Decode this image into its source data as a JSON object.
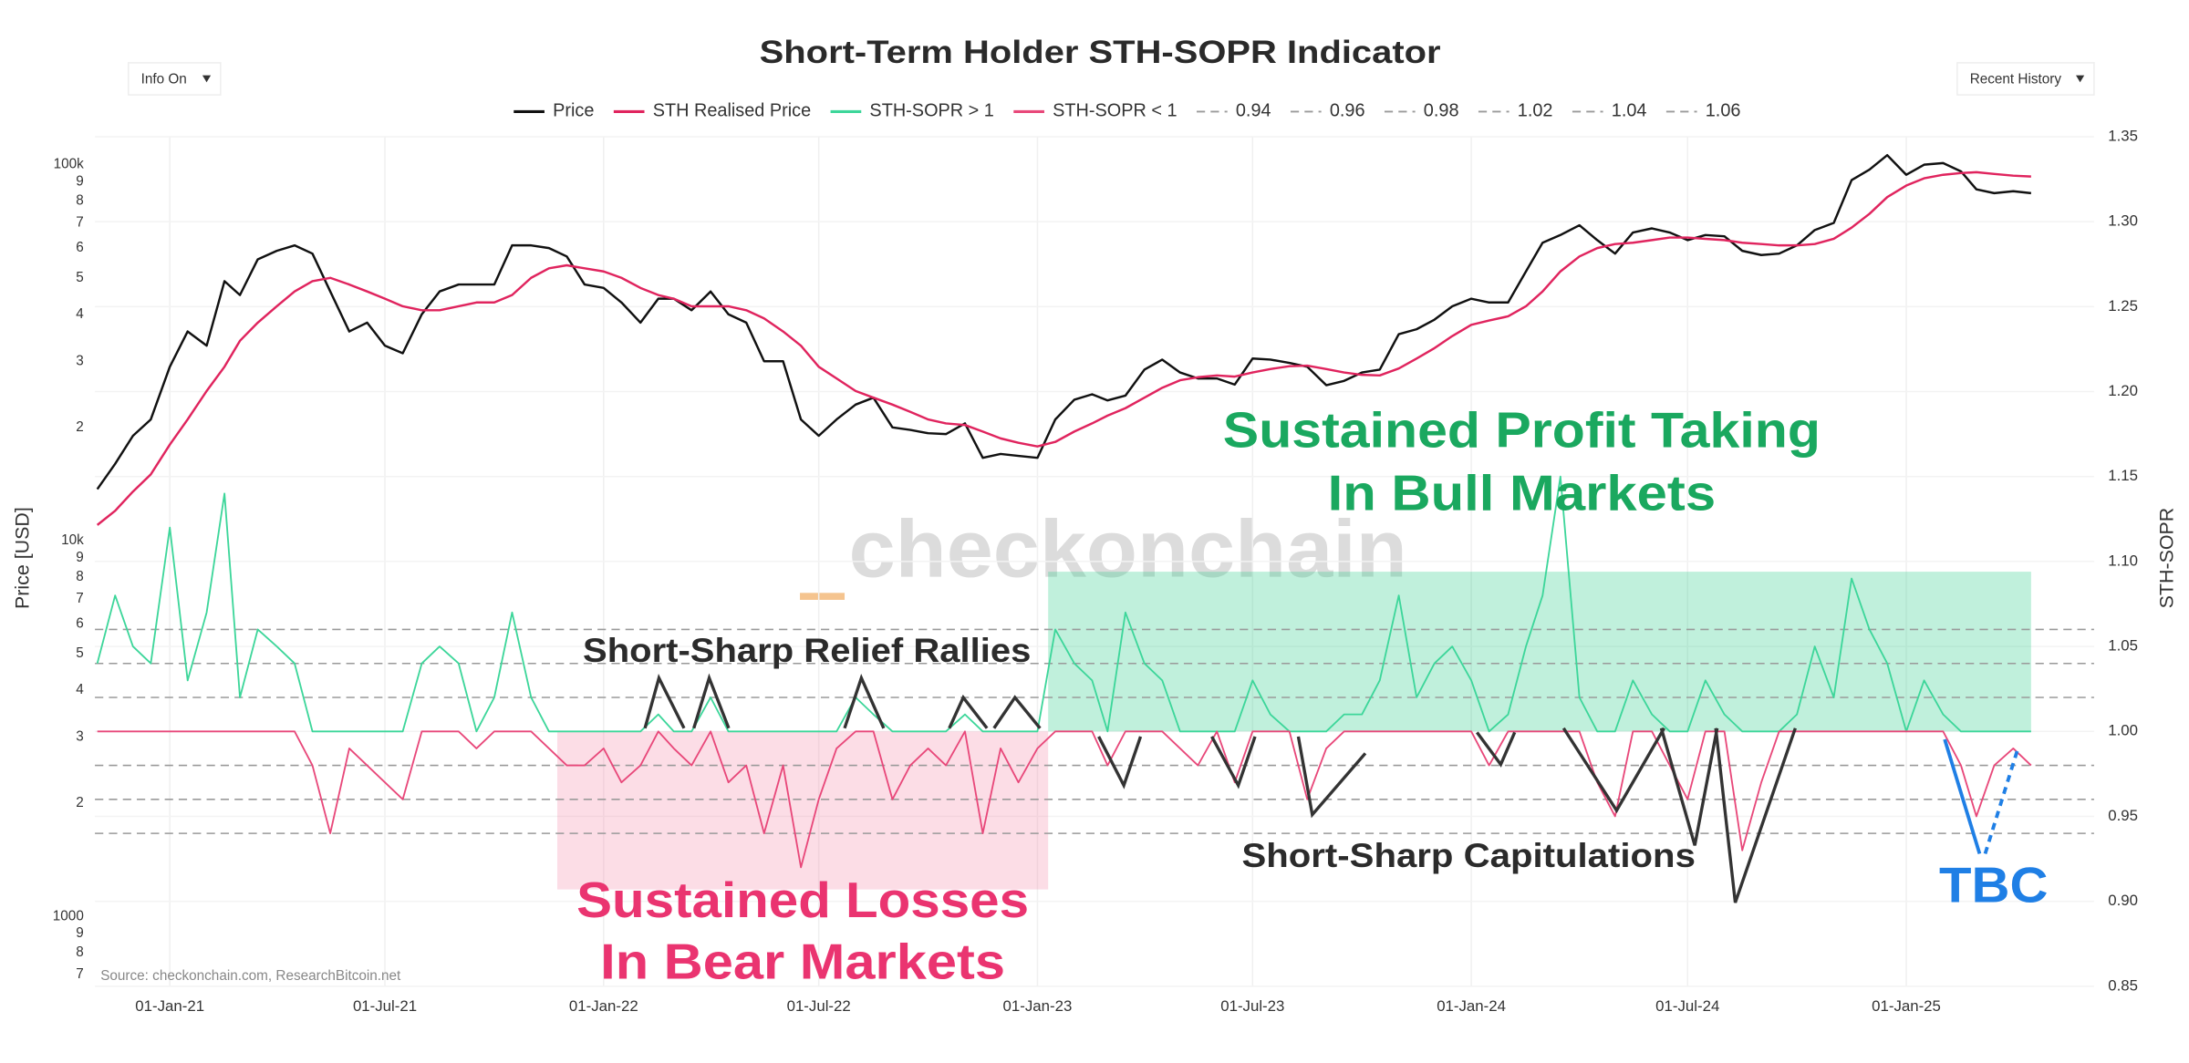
{
  "chart_data": {
    "type": "line",
    "title": "Short-Term Holder STH-SOPR Indicator",
    "ylabel": "Price [USD]",
    "y2label": "STH-SOPR",
    "yscale": "log",
    "grid": true,
    "legend": "top",
    "xlim": [
      "2020-10-30",
      "2025-06-08"
    ],
    "xticks": [
      {
        "value": "2021-01-01",
        "label": "01-Jan-21"
      },
      {
        "value": "2021-07-01",
        "label": "01-Jul-21"
      },
      {
        "value": "2022-01-01",
        "label": "01-Jan-22"
      },
      {
        "value": "2022-07-01",
        "label": "01-Jul-22"
      },
      {
        "value": "2023-01-01",
        "label": "01-Jan-23"
      },
      {
        "value": "2023-07-01",
        "label": "01-Jul-23"
      },
      {
        "value": "2024-01-01",
        "label": "01-Jan-24"
      },
      {
        "value": "2024-07-01",
        "label": "01-Jul-24"
      },
      {
        "value": "2025-01-01",
        "label": "01-Jan-25"
      }
    ],
    "ylim": [
      652,
      118700
    ],
    "yticks": [
      {
        "value": 700,
        "label": "7"
      },
      {
        "value": 800,
        "label": "8"
      },
      {
        "value": 900,
        "label": "9"
      },
      1000,
      {
        "value": 2000,
        "label": "2"
      },
      {
        "value": 3000,
        "label": "3"
      },
      {
        "value": 4000,
        "label": "4"
      },
      {
        "value": 5000,
        "label": "5"
      },
      {
        "value": 6000,
        "label": "6"
      },
      {
        "value": 7000,
        "label": "7"
      },
      {
        "value": 8000,
        "label": "8"
      },
      {
        "value": 9000,
        "label": "9"
      },
      {
        "value": 10000,
        "label": "10k"
      },
      {
        "value": 20000,
        "label": "2"
      },
      {
        "value": 30000,
        "label": "3"
      },
      {
        "value": 40000,
        "label": "4"
      },
      {
        "value": 50000,
        "label": "5"
      },
      {
        "value": 60000,
        "label": "6"
      },
      {
        "value": 70000,
        "label": "7"
      },
      {
        "value": 80000,
        "label": "8"
      },
      {
        "value": 90000,
        "label": "9"
      },
      {
        "value": 100000,
        "label": "100k"
      }
    ],
    "y2lim": [
      0.85,
      1.35
    ],
    "y2ticks": [
      0.85,
      {
        "value": 0.9,
        "label": "0.90"
      },
      0.95,
      {
        "value": 1,
        "label": "1.00"
      },
      1.05,
      {
        "value": 1.1,
        "label": "1.10"
      },
      1.15,
      {
        "value": 1.2,
        "label": "1.20"
      },
      1.25,
      {
        "value": 1.3,
        "label": "1.30"
      },
      1.35
    ],
    "x": [
      "2020-11-01",
      "2020-11-16",
      "2020-12-01",
      "2020-12-16",
      "2021-01-01",
      "2021-01-16",
      "2021-02-01",
      "2021-02-16",
      "2021-03-01",
      "2021-03-16",
      "2021-04-01",
      "2021-04-16",
      "2021-05-01",
      "2021-05-16",
      "2021-06-01",
      "2021-06-16",
      "2021-07-01",
      "2021-07-16",
      "2021-08-01",
      "2021-08-16",
      "2021-09-01",
      "2021-09-16",
      "2021-10-01",
      "2021-10-16",
      "2021-11-01",
      "2021-11-16",
      "2021-12-01",
      "2021-12-16",
      "2022-01-01",
      "2022-01-16",
      "2022-02-01",
      "2022-02-16",
      "2022-03-01",
      "2022-03-16",
      "2022-04-01",
      "2022-04-16",
      "2022-05-01",
      "2022-05-16",
      "2022-06-01",
      "2022-06-16",
      "2022-07-01",
      "2022-07-16",
      "2022-08-01",
      "2022-08-16",
      "2022-09-01",
      "2022-09-16",
      "2022-10-01",
      "2022-10-16",
      "2022-11-01",
      "2022-11-16",
      "2022-12-01",
      "2022-12-16",
      "2023-01-01",
      "2023-01-16",
      "2023-02-01",
      "2023-02-16",
      "2023-03-01",
      "2023-03-16",
      "2023-04-01",
      "2023-04-16",
      "2023-05-01",
      "2023-05-16",
      "2023-06-01",
      "2023-06-16",
      "2023-07-01",
      "2023-07-16",
      "2023-08-01",
      "2023-08-16",
      "2023-09-01",
      "2023-09-16",
      "2023-10-01",
      "2023-10-16",
      "2023-11-01",
      "2023-11-16",
      "2023-12-01",
      "2023-12-16",
      "2024-01-01",
      "2024-01-16",
      "2024-02-01",
      "2024-02-16",
      "2024-03-01",
      "2024-03-16",
      "2024-04-01",
      "2024-04-16",
      "2024-05-01",
      "2024-05-16",
      "2024-06-01",
      "2024-06-16",
      "2024-07-01",
      "2024-07-16",
      "2024-08-01",
      "2024-08-16",
      "2024-09-01",
      "2024-09-16",
      "2024-10-01",
      "2024-10-16",
      "2024-11-01",
      "2024-11-16",
      "2024-12-01",
      "2024-12-16",
      "2025-01-01",
      "2025-01-16",
      "2025-02-01",
      "2025-02-16",
      "2025-03-01",
      "2025-03-16",
      "2025-04-01",
      "2025-04-16"
    ],
    "series": [
      {
        "name": "Price",
        "color": "#111111",
        "values": [
          13700,
          16000,
          19000,
          21000,
          29000,
          36000,
          33000,
          49000,
          45000,
          56000,
          59000,
          61000,
          58000,
          46000,
          36000,
          38000,
          33000,
          31500,
          40000,
          46000,
          48000,
          48000,
          48000,
          61000,
          61000,
          60000,
          57000,
          48000,
          47000,
          43000,
          38000,
          44000,
          44000,
          41000,
          46000,
          40000,
          38000,
          30000,
          30000,
          21000,
          19000,
          21000,
          23000,
          24000,
          20000,
          19700,
          19300,
          19200,
          20500,
          16600,
          17000,
          16800,
          16600,
          21000,
          23700,
          24500,
          23600,
          24300,
          28500,
          30300,
          28000,
          27000,
          27000,
          26000,
          30500,
          30300,
          29700,
          29000,
          25900,
          26600,
          28000,
          28500,
          35400,
          36500,
          38700,
          42000,
          44000,
          43000,
          43000,
          52000,
          62000,
          65000,
          69000,
          63000,
          58000,
          66000,
          67700,
          66000,
          63000,
          65000,
          64500,
          59000,
          57500,
          58000,
          61000,
          67000,
          70000,
          91000,
          97000,
          106000,
          94000,
          100000,
          101000,
          96000,
          86000,
          84000,
          85000,
          84000
        ]
      },
      {
        "name": "STH Realised Price",
        "color": "#e0245e",
        "values": [
          11000,
          12000,
          13500,
          15000,
          18000,
          21000,
          25000,
          29000,
          34000,
          38000,
          42000,
          46000,
          49000,
          50000,
          48000,
          46000,
          44000,
          42000,
          41000,
          41000,
          42000,
          43000,
          43000,
          45000,
          50000,
          53000,
          54000,
          53000,
          52000,
          50000,
          47000,
          45000,
          44000,
          42000,
          42000,
          42000,
          41000,
          39000,
          36000,
          33000,
          29000,
          27000,
          25000,
          24000,
          23000,
          22000,
          21000,
          20500,
          20300,
          19500,
          18700,
          18200,
          17800,
          18300,
          19500,
          20500,
          21500,
          22500,
          24000,
          25500,
          26700,
          27200,
          27500,
          27300,
          28000,
          28600,
          29100,
          29200,
          28600,
          28000,
          27600,
          27500,
          28700,
          30500,
          32500,
          35000,
          37500,
          38500,
          39500,
          42000,
          46000,
          52000,
          57000,
          60000,
          61500,
          62000,
          63000,
          64000,
          64000,
          63500,
          63000,
          62000,
          61500,
          61000,
          61000,
          61500,
          63500,
          68000,
          74000,
          82000,
          88000,
          92000,
          94000,
          95000,
          95500,
          94500,
          93500,
          93000
        ]
      },
      {
        "name": "STH-SOPR > 1",
        "color": "#3dd69a",
        "axis": "y2",
        "values": [
          1.04,
          1.08,
          1.05,
          1.04,
          1.12,
          1.03,
          1.07,
          1.14,
          1.02,
          1.06,
          1.05,
          1.04,
          1,
          1,
          1,
          1,
          1,
          1,
          1.04,
          1.05,
          1.04,
          1,
          1.02,
          1.07,
          1.02,
          1,
          1,
          1,
          1,
          1,
          1,
          1.01,
          1,
          1,
          1.02,
          1,
          1,
          1,
          1,
          1,
          1,
          1,
          1.02,
          1.01,
          1,
          1,
          1,
          1,
          1.01,
          1,
          1,
          1,
          1,
          1.06,
          1.04,
          1.03,
          1,
          1.07,
          1.04,
          1.03,
          1,
          1,
          1,
          1,
          1.03,
          1.01,
          1,
          1,
          1,
          1.01,
          1.01,
          1.03,
          1.08,
          1.02,
          1.04,
          1.05,
          1.03,
          1,
          1.01,
          1.05,
          1.08,
          1.15,
          1.02,
          1,
          1,
          1.03,
          1.01,
          1,
          1,
          1.03,
          1.01,
          1,
          1,
          1,
          1.01,
          1.05,
          1.02,
          1.09,
          1.06,
          1.04,
          1,
          1.03,
          1.01,
          1,
          1,
          1,
          1,
          1
        ]
      },
      {
        "name": "STH-SOPR < 1",
        "color": "#e8487a",
        "axis": "y2",
        "values": [
          1,
          1,
          1,
          1,
          1,
          1,
          1,
          1,
          1,
          1,
          1,
          1,
          0.98,
          0.94,
          0.99,
          0.98,
          0.97,
          0.96,
          1,
          1,
          1,
          0.99,
          1,
          1,
          1,
          0.99,
          0.98,
          0.98,
          0.99,
          0.97,
          0.98,
          1,
          0.99,
          0.98,
          1,
          0.97,
          0.98,
          0.94,
          0.98,
          0.92,
          0.96,
          0.99,
          1,
          1,
          0.96,
          0.98,
          0.99,
          0.98,
          1,
          0.94,
          0.99,
          0.97,
          0.99,
          1,
          1,
          1,
          0.98,
          1,
          1,
          1,
          0.99,
          0.98,
          1,
          0.97,
          1,
          1,
          1,
          0.96,
          0.99,
          1,
          1,
          1,
          1,
          1,
          1,
          1,
          1,
          0.98,
          1,
          1,
          1,
          1,
          1,
          0.97,
          0.95,
          1,
          1,
          0.98,
          0.96,
          1,
          1,
          0.93,
          0.97,
          1,
          1,
          1,
          1,
          1,
          1,
          1,
          1,
          1,
          1,
          0.98,
          0.95,
          0.98,
          0.99,
          0.98
        ]
      }
    ],
    "reference_lines": [
      {
        "name": "0.94",
        "value": 0.94,
        "color": "#9a9a9a"
      },
      {
        "name": "0.96",
        "value": 0.96,
        "color": "#9a9a9a"
      },
      {
        "name": "0.98",
        "value": 0.98,
        "color": "#9a9a9a"
      },
      {
        "name": "1.02",
        "value": 1.02,
        "color": "#9a9a9a"
      },
      {
        "name": "1.04",
        "value": 1.04,
        "color": "#9a9a9a"
      },
      {
        "name": "1.06",
        "value": 1.06,
        "color": "#9a9a9a"
      }
    ],
    "regions": [
      {
        "x": [
          "2023-01-10",
          "2025-04-16"
        ],
        "y": [
          1.0,
          1.094
        ],
        "color": "#2ecc8a",
        "axis": "y2"
      },
      {
        "x": [
          "2021-11-23",
          "2023-01-10"
        ],
        "y": [
          0.907,
          1.0
        ],
        "color": "#f48fab",
        "axis": "y2"
      }
    ],
    "annotations": [
      {
        "text": "Sustained Profit Taking",
        "color": "#1aa85f"
      },
      {
        "text": "In Bull Markets",
        "color": "#1aa85f"
      },
      {
        "text": "Short-Sharp Relief Rallies",
        "color": "#2b2b2b"
      },
      {
        "text": "Sustained Losses",
        "color": "#ea3470"
      },
      {
        "text": "In Bear Markets",
        "color": "#ea3470"
      },
      {
        "text": "Short-Sharp Capitulations",
        "color": "#2b2b2b"
      },
      {
        "text": "TBC",
        "color": "#1f7fe5"
      }
    ],
    "watermark": "checkonchain",
    "source": "Source: checkonchain.com, ResearchBitcoin.net"
  },
  "controls": [
    "Info On",
    "Recent History"
  ]
}
